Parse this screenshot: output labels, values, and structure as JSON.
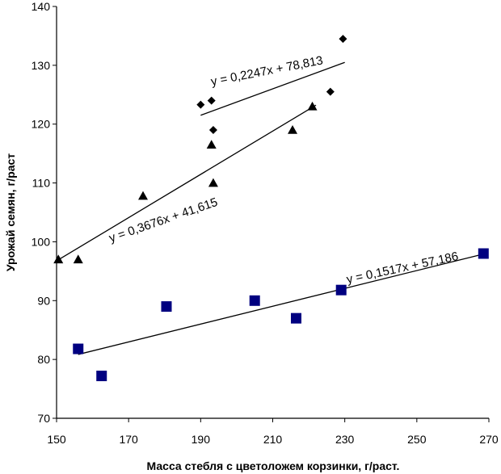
{
  "chart_data": {
    "type": "scatter",
    "title": "",
    "xlabel": "Масса стебля с цветоложем корзинки, г/раст.",
    "ylabel": "Урожай семян, г/раст",
    "xlim": [
      150,
      270
    ],
    "ylim": [
      70,
      140
    ],
    "x_ticks": [
      "150",
      "170",
      "190",
      "210",
      "230",
      "250",
      "270"
    ],
    "y_ticks": [
      "70",
      "80",
      "90",
      "100",
      "110",
      "120",
      "130",
      "140"
    ],
    "grid": false,
    "legend": "none",
    "series": [
      {
        "name": "diamonds",
        "marker": "diamond",
        "color": "#000000",
        "points": [
          [
            190,
            123.3
          ],
          [
            193,
            124
          ],
          [
            193.5,
            119
          ],
          [
            226,
            125.5
          ],
          [
            229.5,
            134.5
          ]
        ],
        "trendline": {
          "x": [
            190,
            230
          ],
          "slope": 0.2247,
          "intercept": 78.813
        },
        "equation": "y = 0,2247x + 78,813"
      },
      {
        "name": "triangles",
        "marker": "triangle",
        "color": "#000000",
        "points": [
          [
            150.5,
            97
          ],
          [
            156,
            97
          ],
          [
            174,
            107.8
          ],
          [
            193,
            116.5
          ],
          [
            193.5,
            110
          ],
          [
            215.5,
            119
          ],
          [
            221,
            123
          ]
        ],
        "trendline": {
          "x": [
            150,
            222
          ],
          "slope": 0.3676,
          "intercept": 41.615
        },
        "equation": "y = 0,3676x + 41,615"
      },
      {
        "name": "squares",
        "marker": "square",
        "color": "#000080",
        "points": [
          [
            156,
            81.8
          ],
          [
            162.5,
            77.2
          ],
          [
            180.5,
            89
          ],
          [
            205,
            90
          ],
          [
            216.5,
            87
          ],
          [
            229,
            91.8
          ],
          [
            268.5,
            98
          ]
        ],
        "trendline": {
          "x": [
            156,
            268.5
          ],
          "slope": 0.1517,
          "intercept": 57.186
        },
        "equation": "y = 0,1517x + 57,186"
      }
    ]
  }
}
